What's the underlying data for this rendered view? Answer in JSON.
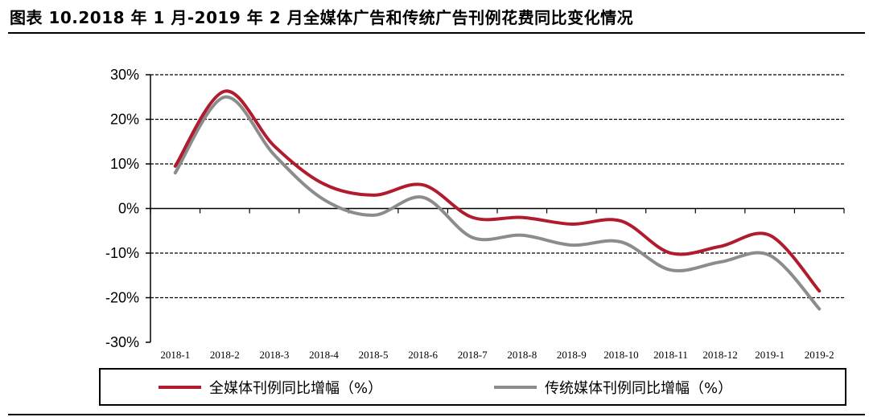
{
  "title": "图表 10.2018 年 1 月-2019 年 2 月全媒体广告和传统广告刊例花费同比变化情况",
  "chart_data": {
    "type": "line",
    "title": "图表 10.2018 年 1 月-2019 年 2 月全媒体广告和传统广告刊例花费同比变化情况",
    "categories": [
      "2018-1",
      "2018-2",
      "2018-3",
      "2018-4",
      "2018-5",
      "2018-6",
      "2018-7",
      "2018-8",
      "2018-9",
      "2018-10",
      "2018-11",
      "2018-12",
      "2019-1",
      "2019-2"
    ],
    "yticks": [
      "30%",
      "20%",
      "10%",
      "0%",
      "-10%",
      "-20%",
      "-30%"
    ],
    "ylim": [
      -30,
      30
    ],
    "grid": true,
    "legend_position": "bottom",
    "series": [
      {
        "name": "全媒体刊例同比增幅（%）",
        "color": "#b01c2e",
        "values": [
          9.5,
          26.3,
          14.0,
          5.5,
          3.0,
          5.3,
          -2.0,
          -2.0,
          -3.5,
          -2.8,
          -10.0,
          -8.5,
          -6.0,
          -18.5
        ]
      },
      {
        "name": "传统媒体刊例同比增幅（%）",
        "color": "#8c8c8c",
        "values": [
          8.0,
          25.0,
          12.0,
          2.0,
          -1.5,
          2.5,
          -6.5,
          -6.0,
          -8.2,
          -7.5,
          -13.8,
          -12.0,
          -10.5,
          -22.5
        ]
      }
    ]
  }
}
